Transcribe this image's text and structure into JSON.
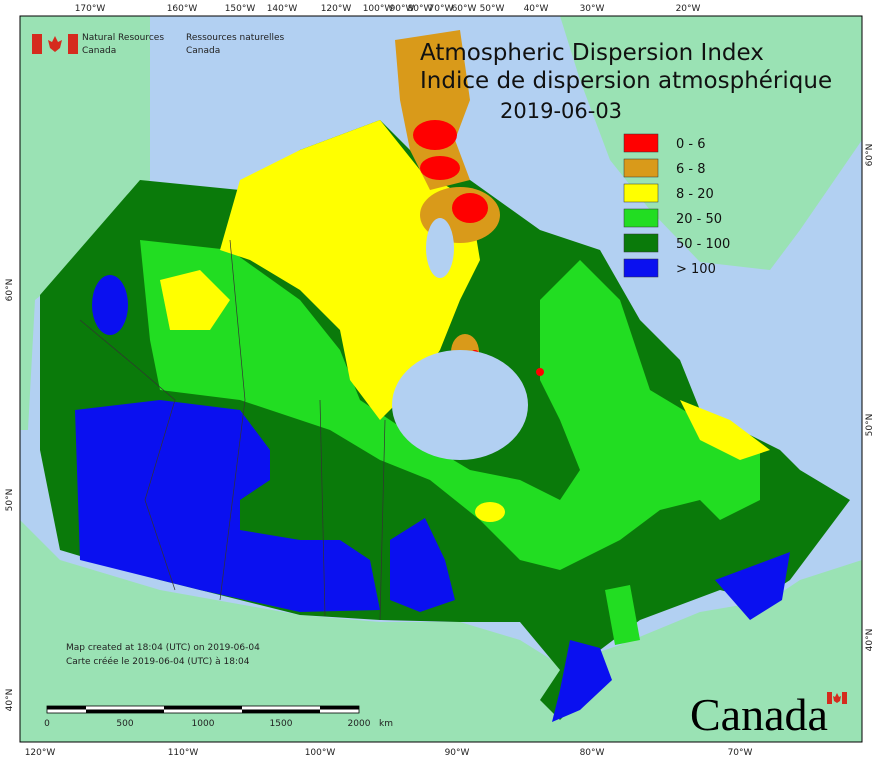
{
  "header": {
    "agency_en": [
      "Natural Resources",
      "Canada"
    ],
    "agency_fr": [
      "Ressources naturelles",
      "Canada"
    ]
  },
  "title": {
    "line1": "Atmospheric Dispersion Index",
    "line2": "Indice de dispersion atmosphérique",
    "date": "2019-06-03"
  },
  "legend": [
    {
      "label": "0 - 6",
      "color": "#ff0000"
    },
    {
      "label": "6 - 8",
      "color": "#d99a1a"
    },
    {
      "label": "8 - 20",
      "color": "#ffff00"
    },
    {
      "label": "20 - 50",
      "color": "#22dd22"
    },
    {
      "label": "50 - 100",
      "color": "#0a7a0a"
    },
    {
      "label": "> 100",
      "color": "#0a10f0"
    }
  ],
  "top_labels": [
    "170°W",
    "160°W",
    "150°W",
    "140°W",
    "120°W",
    "100°W",
    "90°W",
    "80°W",
    "70°W",
    "60°W",
    "50°W",
    "40°W",
    "30°W",
    "20°W"
  ],
  "bottom_labels": [
    "120°W",
    "110°W",
    "100°W",
    "90°W",
    "80°W",
    "70°W"
  ],
  "left_labels": [
    "60°N",
    "50°N",
    "40°N"
  ],
  "right_labels": [
    "60°N",
    "50°N",
    "40°N"
  ],
  "credits": [
    "Map created at 18:04 (UTC) on 2019-06-04",
    "Carte créée le 2019-06-04 (UTC) à 18:04"
  ],
  "scale": {
    "labels": [
      "0",
      "500",
      "1000",
      "1500",
      "2000"
    ],
    "unit": "km"
  },
  "wordmark": "Canada"
}
